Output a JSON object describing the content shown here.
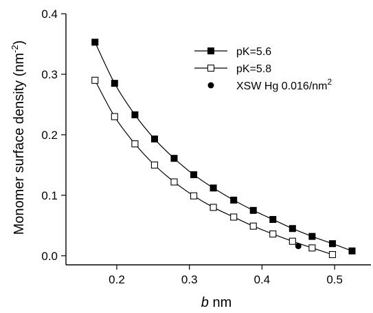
{
  "chart_data": {
    "type": "line",
    "title": "",
    "xlabel_italic": "b",
    "xlabel_rest": " nm",
    "ylabel_main": "Monomer surface density (nm",
    "ylabel_sup": "-2",
    "ylabel_close": ")",
    "xlim": [
      0.13,
      0.55
    ],
    "ylim": [
      -0.015,
      0.4
    ],
    "xticks": [
      0.2,
      0.3,
      0.4,
      0.5
    ],
    "yticks": [
      0.0,
      0.1,
      0.2,
      0.3,
      0.4
    ],
    "xtick_labels": [
      "0.2",
      "0.3",
      "0.4",
      "0.5"
    ],
    "ytick_labels": [
      "0.0",
      "0.1",
      "0.2",
      "0.3",
      "0.4"
    ],
    "grid": false,
    "legend_position": "top-right",
    "series": [
      {
        "name": "pK=5.6",
        "marker": "filled-square",
        "color": "#000000",
        "x": [
          0.17,
          0.197,
          0.225,
          0.252,
          0.279,
          0.306,
          0.333,
          0.361,
          0.388,
          0.415,
          0.442,
          0.469,
          0.497,
          0.524
        ],
        "y": [
          0.353,
          0.285,
          0.233,
          0.193,
          0.161,
          0.134,
          0.112,
          0.092,
          0.075,
          0.06,
          0.045,
          0.032,
          0.02,
          0.008
        ]
      },
      {
        "name": "pK=5.8",
        "marker": "open-square",
        "color": "#000000",
        "x": [
          0.17,
          0.197,
          0.225,
          0.252,
          0.279,
          0.306,
          0.333,
          0.361,
          0.388,
          0.415,
          0.442,
          0.469,
          0.497
        ],
        "y": [
          0.29,
          0.23,
          0.185,
          0.15,
          0.122,
          0.099,
          0.08,
          0.064,
          0.049,
          0.036,
          0.024,
          0.013,
          0.002
        ]
      },
      {
        "name": "XSW Hg 0.016/nm",
        "name_sup": "2",
        "marker": "filled-circle",
        "color": "#000000",
        "x": [
          0.45
        ],
        "y": [
          0.016
        ]
      }
    ]
  }
}
